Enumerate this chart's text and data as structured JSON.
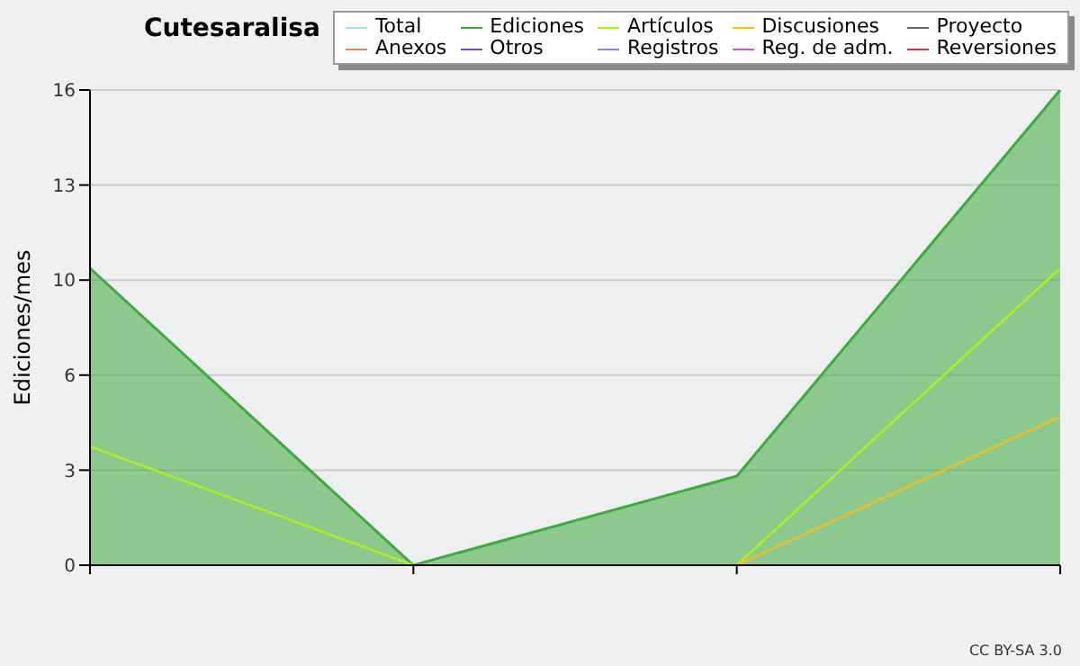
{
  "chart_data": {
    "type": "line",
    "title": "Cutesaralisa",
    "ylabel": "Ediciones/mes",
    "categories": [
      null,
      null,
      null,
      null
    ],
    "ylim": [
      0,
      16
    ],
    "yticks": [
      0,
      {
        "value": 3.2,
        "label": "3"
      },
      {
        "value": 6.4,
        "label": "6"
      },
      {
        "value": 9.6,
        "label": "10"
      },
      {
        "value": 12.8,
        "label": "13"
      },
      16
    ],
    "grid": "y",
    "legend": "top right",
    "marker": "none",
    "annotations": [
      "CC BY-SA 3.0"
    ],
    "series": [
      {
        "name": "Total",
        "color": "#a8e0e0",
        "values": [
          null,
          null,
          null,
          null
        ]
      },
      {
        "name": "Ediciones",
        "type": "area",
        "color": "#3caa3c",
        "values": [
          10,
          0,
          3,
          16
        ]
      },
      {
        "name": "Artículos",
        "color": "#b0f020",
        "values": [
          4,
          0,
          0,
          10
        ]
      },
      {
        "name": "Discusiones",
        "color": "#f0c020",
        "values": [
          null,
          null,
          0,
          5
        ]
      },
      {
        "name": "Proyecto",
        "color": "#606060",
        "values": [
          null,
          null,
          null,
          null
        ]
      },
      {
        "name": "Anexos",
        "color": "#f08040",
        "values": [
          null,
          null,
          null,
          null
        ]
      },
      {
        "name": "Otros",
        "color": "#8040d0",
        "values": [
          null,
          null,
          null,
          null
        ]
      },
      {
        "name": "Registros",
        "color": "#8080f0",
        "values": [
          null,
          null,
          null,
          null
        ]
      },
      {
        "name": "Reg. de adm.",
        "color": "#d050e0",
        "values": [
          null,
          null,
          null,
          null
        ]
      },
      {
        "name": "Reversiones",
        "color": "#e03030",
        "values": [
          null,
          null,
          null,
          null
        ]
      }
    ]
  }
}
